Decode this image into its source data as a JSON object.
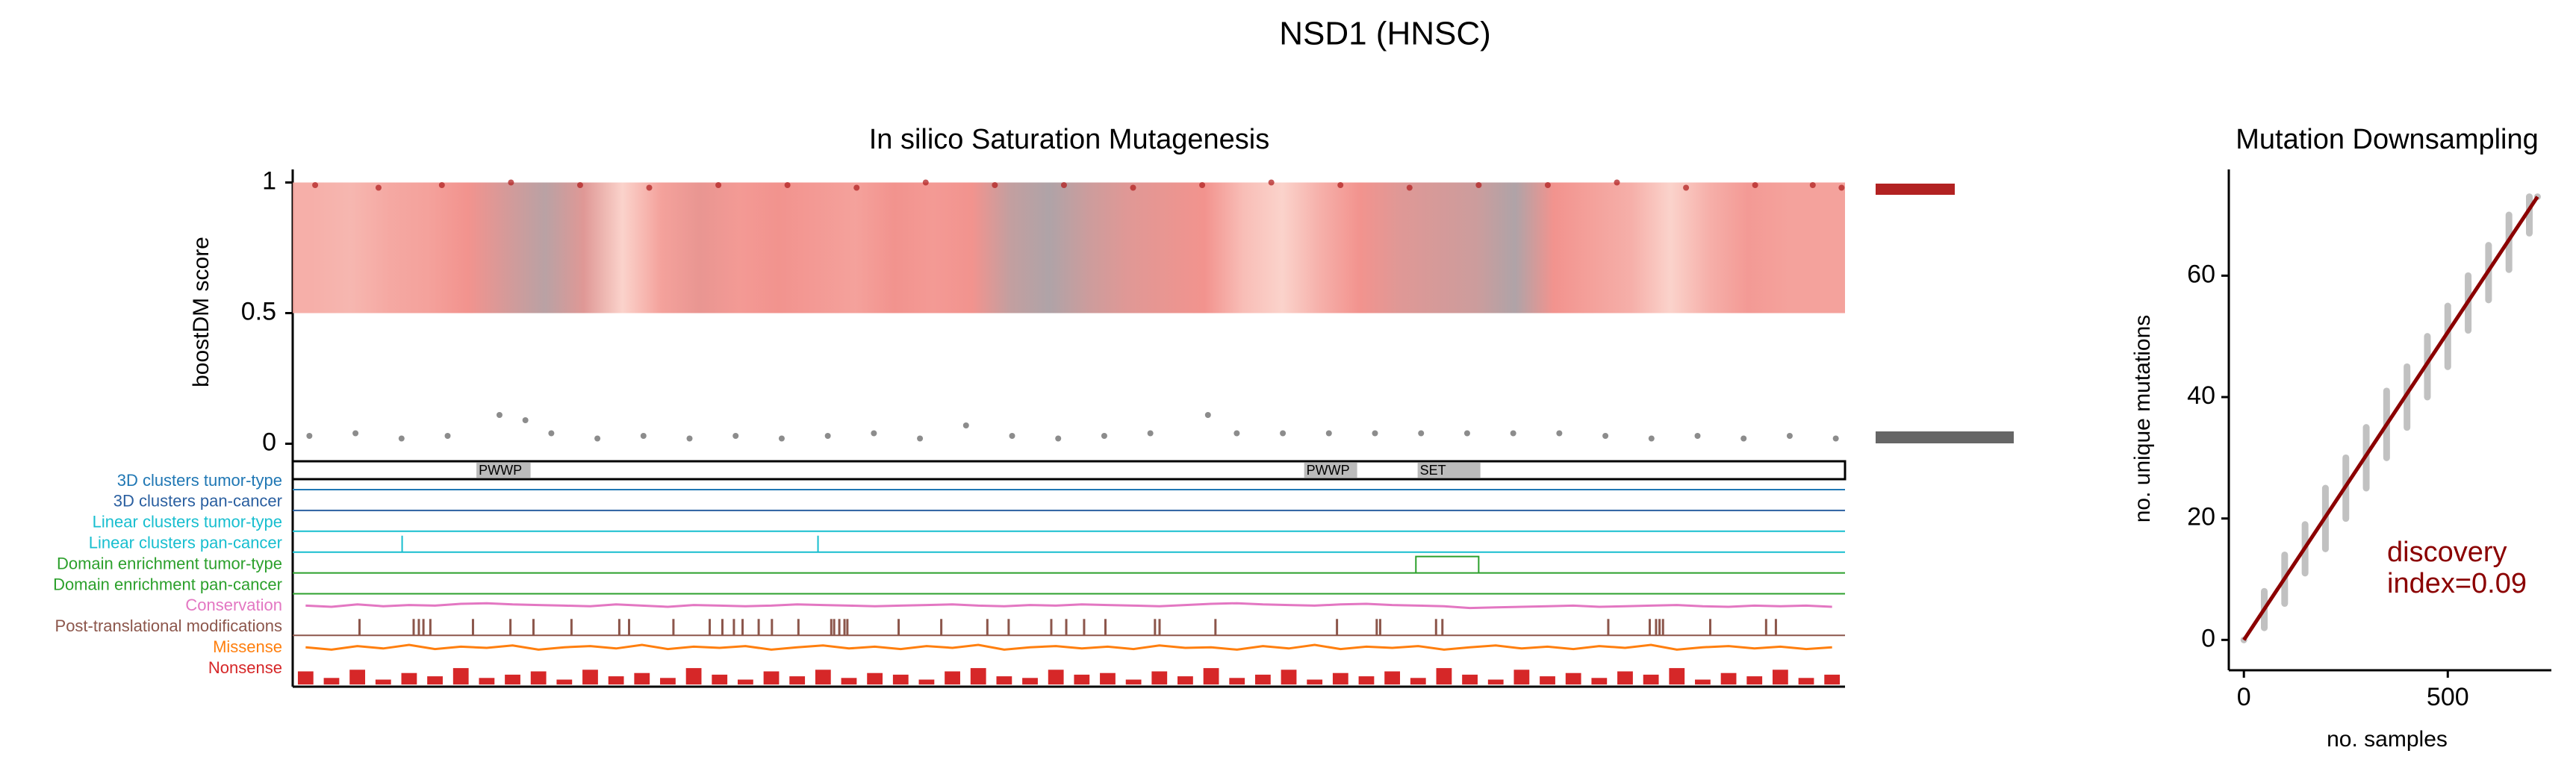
{
  "title": "NSD1 (HNSC)",
  "chart_data": [
    {
      "type": "saturation",
      "title": "In silico Saturation Mutagenesis",
      "ylabel": "boostDM score",
      "xlim": [
        1,
        2696
      ],
      "ylim": [
        -0.03,
        1.05
      ],
      "yticks": [
        0,
        0.5,
        1
      ],
      "heat": {
        "range": [
          0.5,
          1
        ],
        "values": [
          0.4,
          0.35,
          0.45,
          0.5,
          0.6,
          0.75,
          0.9,
          0.7,
          0.15,
          0.5,
          0.65,
          0.55,
          0.6,
          0.55,
          0.5,
          0.6,
          0.55,
          0.6,
          0.85,
          0.95,
          0.8,
          0.7,
          0.65,
          0.6,
          0.3,
          0.15,
          0.4,
          0.6,
          0.7,
          0.75,
          0.8,
          0.95,
          0.6,
          0.5,
          0.4,
          0.15,
          0.4,
          0.55,
          0.5,
          0.5
        ]
      },
      "high_scores": {
        "color": "#b22222",
        "x": [
          40,
          150,
          260,
          380,
          500,
          620,
          740,
          860,
          980,
          1100,
          1220,
          1340,
          1460,
          1580,
          1700,
          1820,
          1940,
          2060,
          2180,
          2300,
          2420,
          2540,
          2640,
          2690
        ],
        "values": [
          0.99,
          0.98,
          0.99,
          1.0,
          0.99,
          0.98,
          0.99,
          0.99,
          0.98,
          1.0,
          0.99,
          0.99,
          0.98,
          0.99,
          1.0,
          0.99,
          0.98,
          0.99,
          0.99,
          1.0,
          0.98,
          0.99,
          0.99,
          0.98
        ]
      },
      "low_scores": {
        "color": "#666666",
        "x": [
          30,
          110,
          190,
          270,
          360,
          405,
          450,
          530,
          610,
          690,
          770,
          850,
          930,
          1010,
          1090,
          1170,
          1250,
          1330,
          1410,
          1490,
          1590,
          1640,
          1720,
          1800,
          1880,
          1960,
          2040,
          2120,
          2200,
          2280,
          2360,
          2440,
          2520,
          2600,
          2680
        ],
        "values": [
          0.03,
          0.04,
          0.02,
          0.03,
          0.11,
          0.09,
          0.04,
          0.02,
          0.03,
          0.02,
          0.03,
          0.02,
          0.03,
          0.04,
          0.02,
          0.07,
          0.03,
          0.02,
          0.03,
          0.04,
          0.11,
          0.04,
          0.04,
          0.04,
          0.04,
          0.04,
          0.04,
          0.04,
          0.04,
          0.03,
          0.02,
          0.03,
          0.02,
          0.03,
          0.02
        ]
      },
      "domains": [
        {
          "name": "PWWP",
          "start": 320,
          "end": 414
        },
        {
          "name": "PWWP",
          "start": 1757,
          "end": 1849
        },
        {
          "name": "SET",
          "start": 1954,
          "end": 2063
        }
      ],
      "tracks": [
        {
          "name": "3D clusters tumor-type",
          "color": "#1f77b4"
        },
        {
          "name": "3D clusters pan-cancer",
          "color": "#2a5fa0"
        },
        {
          "name": "Linear clusters tumor-type",
          "color": "#17becf"
        },
        {
          "name": "Linear clusters pan-cancer",
          "color": "#17becf",
          "peaks": [
            191,
            913
          ]
        },
        {
          "name": "Domain enrichment tumor-type",
          "color": "#2ca02c",
          "regions": [
            [
              1951,
              2060
            ]
          ]
        },
        {
          "name": "Domain enrichment pan-cancer",
          "color": "#2ca02c"
        },
        {
          "name": "Conservation",
          "color": "#e377c2",
          "values": [
            0.5,
            0.4,
            0.6,
            0.45,
            0.55,
            0.5,
            0.65,
            0.7,
            0.6,
            0.55,
            0.5,
            0.45,
            0.6,
            0.5,
            0.4,
            0.55,
            0.5,
            0.45,
            0.5,
            0.6,
            0.55,
            0.5,
            0.45,
            0.5,
            0.55,
            0.6,
            0.5,
            0.45,
            0.55,
            0.5,
            0.6,
            0.55,
            0.5,
            0.45,
            0.55,
            0.65,
            0.7,
            0.6,
            0.55,
            0.5,
            0.6,
            0.65,
            0.55,
            0.5,
            0.45,
            0.3,
            0.35,
            0.4,
            0.45,
            0.5,
            0.4,
            0.45,
            0.5,
            0.55,
            0.45,
            0.4,
            0.5,
            0.45,
            0.5,
            0.4
          ]
        },
        {
          "name": "Post-translational modifications",
          "color": "#8c564b",
          "positions": [
            117,
            211,
            220,
            228,
            240,
            314,
            379,
            419,
            485,
            568,
            585,
            662,
            725,
            747,
            767,
            782,
            810,
            833,
            879,
            936,
            941,
            950,
            959,
            964,
            1053,
            1127,
            1207,
            1244,
            1318,
            1344,
            1375,
            1412,
            1498,
            1506,
            1603,
            1814,
            1883,
            1889,
            1986,
            1997,
            2285,
            2357,
            2368,
            2374,
            2380,
            2462,
            2559,
            2576
          ]
        },
        {
          "name": "Missense",
          "color": "#ff7f0e",
          "values": [
            0.5,
            0.3,
            0.6,
            0.4,
            0.7,
            0.35,
            0.55,
            0.45,
            0.65,
            0.3,
            0.5,
            0.6,
            0.4,
            0.7,
            0.35,
            0.55,
            0.45,
            0.6,
            0.3,
            0.5,
            0.65,
            0.4,
            0.55,
            0.35,
            0.6,
            0.45,
            0.7,
            0.3,
            0.5,
            0.6,
            0.4,
            0.55,
            0.35,
            0.65,
            0.45,
            0.5,
            0.3,
            0.6,
            0.4,
            0.7,
            0.35,
            0.55,
            0.45,
            0.6,
            0.3,
            0.5,
            0.65,
            0.4,
            0.55,
            0.35,
            0.6,
            0.45,
            0.7,
            0.3,
            0.5,
            0.6,
            0.4,
            0.55,
            0.35,
            0.5
          ]
        },
        {
          "name": "Nonsense",
          "color": "#d62728",
          "values": [
            0.8,
            0.4,
            0.9,
            0.3,
            0.7,
            0.5,
            1.0,
            0.4,
            0.6,
            0.8,
            0.3,
            0.9,
            0.5,
            0.7,
            0.4,
            1.0,
            0.6,
            0.3,
            0.8,
            0.5,
            0.9,
            0.4,
            0.7,
            0.6,
            0.3,
            0.8,
            1.0,
            0.5,
            0.4,
            0.9,
            0.6,
            0.7,
            0.3,
            0.8,
            0.5,
            1.0,
            0.4,
            0.6,
            0.9,
            0.3,
            0.7,
            0.5,
            0.8,
            0.4,
            1.0,
            0.6,
            0.3,
            0.9,
            0.5,
            0.7,
            0.4,
            0.8,
            0.6,
            1.0,
            0.3,
            0.7,
            0.5,
            0.9,
            0.4,
            0.6
          ]
        }
      ]
    },
    {
      "type": "downsampling",
      "title": "Mutation Downsampling",
      "xlabel": "no. samples",
      "ylabel": "no. unique mutations",
      "xlim": [
        -37,
        754
      ],
      "ylim": [
        -5,
        77.5
      ],
      "xticks": [
        0,
        500
      ],
      "yticks": [
        0,
        20,
        40,
        60
      ],
      "samples": {
        "color": "#777777",
        "x": [
          0,
          50,
          100,
          150,
          200,
          250,
          300,
          350,
          400,
          450,
          500,
          550,
          600,
          650,
          700,
          720
        ],
        "min": [
          0,
          2,
          6,
          11,
          15,
          20,
          25,
          30,
          35,
          40,
          45,
          51,
          56,
          61,
          67,
          73
        ],
        "max": [
          0,
          8,
          14,
          19,
          25,
          30,
          35,
          41,
          45,
          50,
          55,
          60,
          65,
          70,
          73,
          73
        ]
      },
      "fit": {
        "color": "#8b0000",
        "x": [
          0,
          720
        ],
        "values": [
          0,
          73
        ]
      },
      "annotation": [
        "discovery",
        "index=0.09"
      ]
    }
  ]
}
